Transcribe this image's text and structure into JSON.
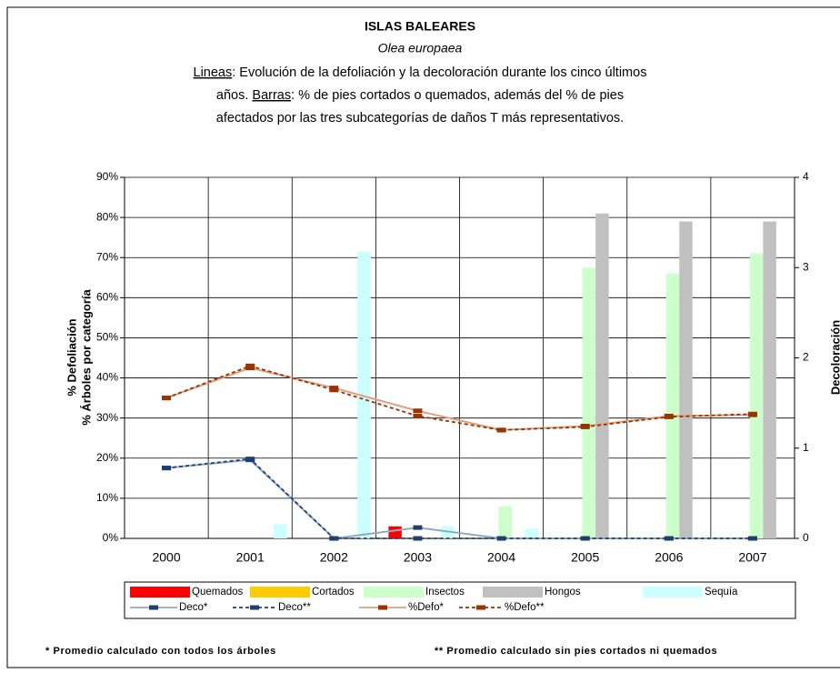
{
  "chart_data": {
    "type": "bar",
    "title": "ISLAS BALEARES",
    "subtitle": "Olea europaea",
    "description": {
      "lineas": "Lineas",
      "line1": ": Evolución de la defoliación y la decoloración durante los cinco últimos",
      "line2a": "años. ",
      "barras": "Barras",
      "line2b": ": % de pies cortados o quemados, además del % de pies",
      "line3": "afectados por las tres subcategorías de daños T más representativos."
    },
    "ylabel": [
      "% Defoliación",
      "% Árboles por categoría"
    ],
    "y2label": "Decoloración",
    "categories": [
      "2000",
      "2001",
      "2002",
      "2003",
      "2004",
      "2005",
      "2006",
      "2007"
    ],
    "ylim": [
      0,
      90
    ],
    "yticks": [
      {
        "value": 0,
        "label": "0%"
      },
      {
        "value": 10,
        "label": "10%"
      },
      {
        "value": 20,
        "label": "20%"
      },
      {
        "value": 30,
        "label": "30%"
      },
      {
        "value": 40,
        "label": "40%"
      },
      {
        "value": 50,
        "label": "50%"
      },
      {
        "value": 60,
        "label": "60%"
      },
      {
        "value": 70,
        "label": "70%"
      },
      {
        "value": 80,
        "label": "80%"
      },
      {
        "value": 90,
        "label": "90%"
      }
    ],
    "y2lim": [
      0,
      4
    ],
    "y2ticks": [
      0,
      1,
      2,
      3,
      4
    ],
    "grid": true,
    "series": [
      {
        "name": "Quemados",
        "type": "bar",
        "color": "#ff0000",
        "values": [
          0,
          0,
          0,
          3,
          0,
          0,
          0,
          0
        ]
      },
      {
        "name": "Cortados",
        "type": "bar",
        "color": "#ffcc00",
        "values": [
          0,
          0,
          0,
          0,
          0,
          0,
          0,
          0
        ]
      },
      {
        "name": "Insectos",
        "type": "bar",
        "color": "#ccffcc",
        "values": [
          0,
          0,
          0,
          0,
          8,
          67.5,
          66,
          71
        ]
      },
      {
        "name": "Hongos",
        "type": "bar",
        "color": "#c0c0c0",
        "values": [
          0,
          0,
          0,
          0,
          0,
          81,
          79,
          79
        ]
      },
      {
        "name": "Sequía",
        "type": "bar",
        "color": "#ccffff",
        "values": [
          0,
          3.5,
          71.5,
          3,
          2.5,
          0,
          0,
          0
        ]
      },
      {
        "name": "Deco*",
        "type": "line",
        "axis": "y2",
        "color": "#8eaac8",
        "marker_color": "#1f3f6f",
        "dash": false,
        "values": [
          0.78,
          0.87,
          0,
          0.12,
          0,
          0,
          0,
          0
        ]
      },
      {
        "name": "Deco**",
        "type": "line",
        "axis": "y2",
        "color": "#1f3f6f",
        "marker_color": "#1f3f6f",
        "dash": true,
        "values": [
          0.78,
          0.88,
          0,
          0,
          0,
          0,
          0,
          0
        ]
      },
      {
        "name": "%Defo*",
        "type": "line",
        "color": "#e0a080",
        "marker_color": "#993300",
        "dash": false,
        "values": [
          35,
          42.5,
          37.5,
          31.8,
          27,
          28,
          30.5,
          30.8
        ]
      },
      {
        "name": "%Defo**",
        "type": "line",
        "color": "#993300",
        "marker_color": "#993300",
        "dash": true,
        "values": [
          35,
          43,
          37,
          30.5,
          27,
          27.8,
          30.3,
          31
        ]
      }
    ],
    "footnotes": [
      "* Promedio calculado con todos los árboles",
      "** Promedio calculado sin pies cortados ni quemados"
    ]
  }
}
